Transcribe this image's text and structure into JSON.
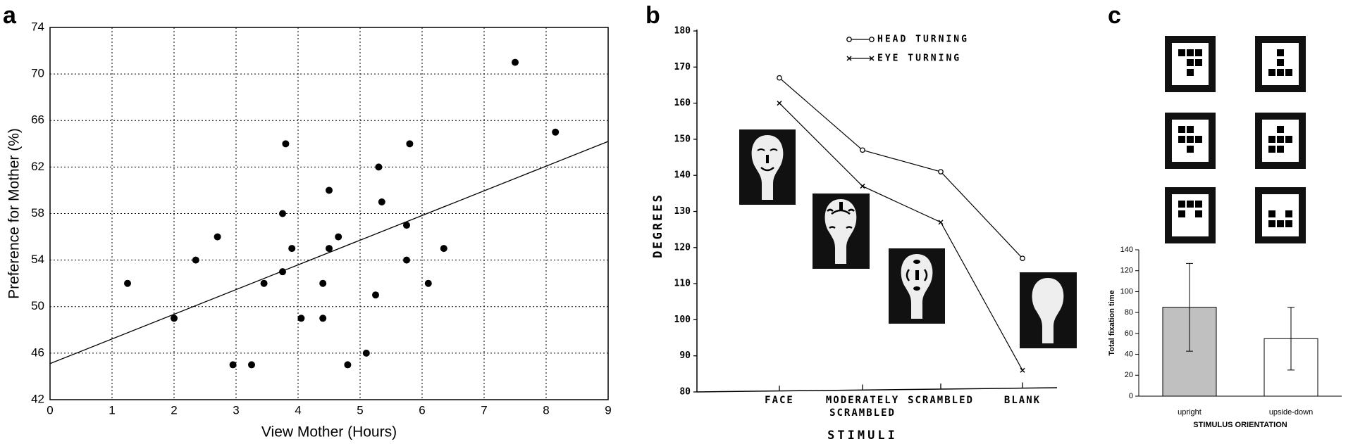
{
  "chart_data": [
    {
      "type": "scatter",
      "panel_label": "a",
      "x_label": "View Mother (Hours)",
      "y_label": "Preference for Mother (%)",
      "x": [
        1.25,
        2,
        2.35,
        2.7,
        2.95,
        3.25,
        3.45,
        3.75,
        3.75,
        3.8,
        3.9,
        4.05,
        4.4,
        4.4,
        4.5,
        4.5,
        4.65,
        4.8,
        5.1,
        5.25,
        5.3,
        5.35,
        5.75,
        5.75,
        5.8,
        6.1,
        6.35,
        7.5,
        8.15
      ],
      "values": [
        52,
        49,
        54,
        56,
        45,
        45,
        52,
        53,
        58,
        64,
        55,
        49,
        49,
        52,
        60,
        55,
        56,
        45,
        46,
        51,
        62,
        59,
        57,
        54,
        64,
        52,
        55,
        71,
        65
      ],
      "color": "#000000",
      "fit_line": {
        "x": [
          0,
          9
        ],
        "y": [
          45.1,
          64.2
        ]
      },
      "xlim": [
        0,
        9
      ],
      "xticks": [
        0,
        1,
        2,
        3,
        4,
        5,
        6,
        7,
        8,
        9
      ],
      "ylim": [
        42,
        74
      ],
      "yticks": [
        42,
        46,
        50,
        54,
        58,
        62,
        66,
        70,
        74
      ],
      "grid": true
    },
    {
      "type": "line",
      "panel_label": "b",
      "x_label": "STIMULI",
      "y_label": "DEGREES",
      "categories": [
        "FACE",
        "MODERATELY\nSCRAMBLED",
        "SCRAMBLED",
        "BLANK"
      ],
      "series": [
        {
          "name": "HEAD TURNING",
          "marker": "o",
          "color": "#000000",
          "values": [
            167,
            147,
            141,
            117
          ]
        },
        {
          "name": "EYE TURNING",
          "marker": "x",
          "color": "#000000",
          "values": [
            160,
            137,
            127,
            86
          ]
        }
      ],
      "ylim": [
        80,
        180
      ],
      "yticks": [
        80,
        90,
        100,
        110,
        120,
        130,
        140,
        150,
        160,
        170,
        180
      ]
    },
    {
      "type": "bar",
      "panel_label": "c",
      "x_label": "STIMULUS ORIENTATION",
      "y_label": "Total fixation time",
      "categories": [
        "upright",
        "upside-down"
      ],
      "values": [
        85,
        55
      ],
      "errors": [
        42,
        30
      ],
      "colors": [
        "#c0c0c0",
        "#ffffff"
      ],
      "ylim": [
        0,
        140
      ],
      "yticks": [
        0,
        20,
        40,
        60,
        80,
        100,
        120,
        140
      ]
    }
  ]
}
